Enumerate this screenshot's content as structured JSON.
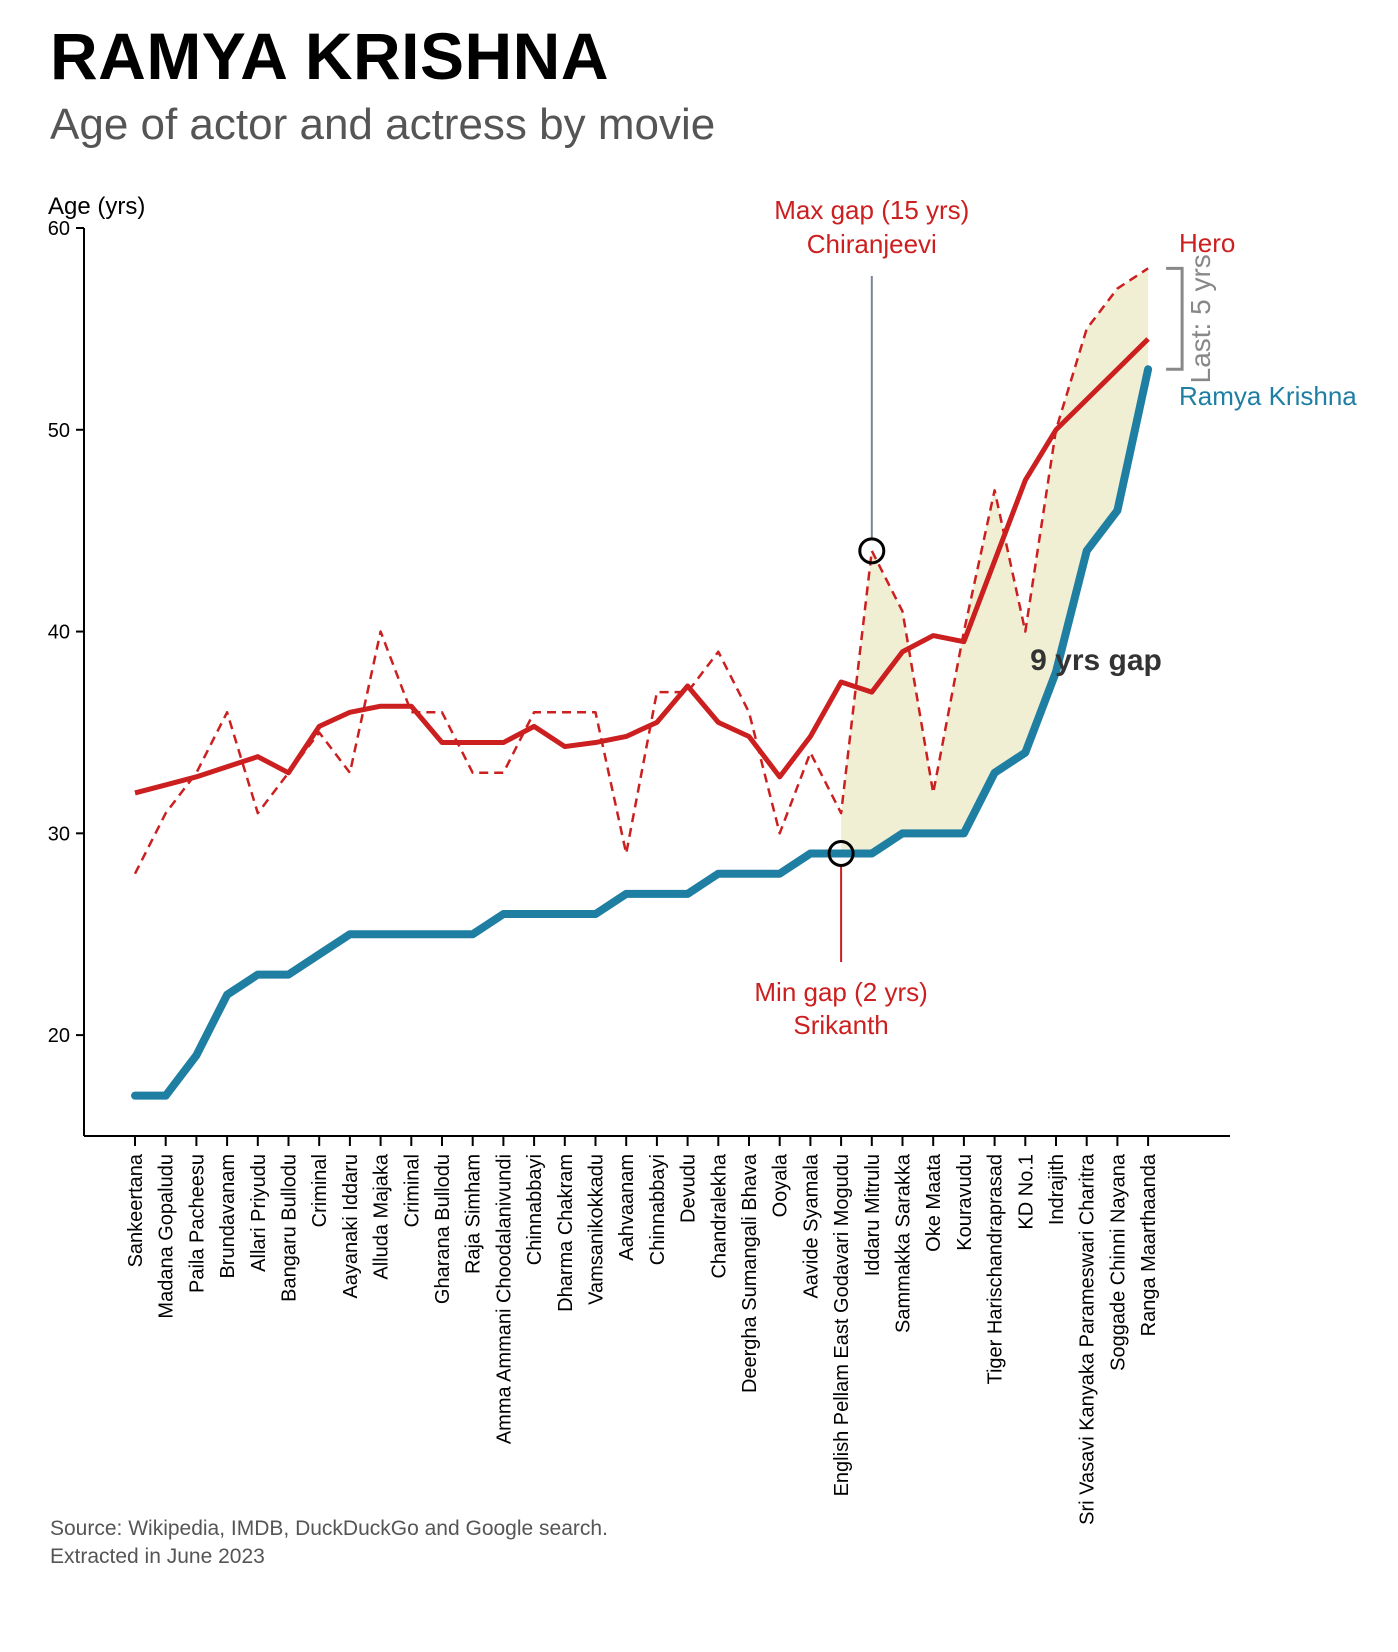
{
  "title": "RAMYA KRISHNA",
  "subtitle": "Age of actor and actress by movie",
  "source": {
    "line1": "Source: Wikipedia, IMDB, DuckDuckGo and Google search.",
    "line2": "Extracted in June 2023"
  },
  "colors": {
    "actress": "#1f7fa3",
    "hero": "#cc1f1f",
    "gap_fill": "#f0efd4",
    "pointer": "#7a8795",
    "bracket": "#888888"
  },
  "chart_data": {
    "type": "line",
    "ylabel": "Age (yrs)",
    "ylim": [
      15,
      60
    ],
    "yticks": [
      20,
      30,
      40,
      50,
      60
    ],
    "grid": false,
    "categories": [
      "Sankeertana",
      "Madana Gopaludu",
      "Paila Pacheesu",
      "Brundavanam",
      "Allari Priyudu",
      "Bangaru Bullodu",
      "Criminal",
      "Aayanaki Iddaru",
      "Alluda Majaka",
      "Criminal",
      "Gharana Bullodu",
      "Raja Simham",
      "Amma Ammani Choodalanivundi",
      "Chinnabbayi",
      "Dharma Chakram",
      "Vamsanikokkadu",
      "Aahvaanam",
      "Chinnabbayi",
      "Devudu",
      "Chandralekha",
      "Deergha Sumangali Bhava",
      "Ooyala",
      "Aavide Syamala",
      "English Pellam East Godavari Mogudu",
      "Iddaru Mitrulu",
      "Sammakka Sarakka",
      "Oke Maata",
      "Kouravudu",
      "Tiger Harischandraprasad",
      "KD No.1",
      "Indrajith",
      "Sri Vasavi Kanyaka Parameswari Charitra",
      "Soggade Chinni Nayana",
      "Ranga Maarthaanda"
    ],
    "series": [
      {
        "name": "Ramya Krishna",
        "style": "solid-thick",
        "values": [
          17,
          17,
          19,
          22,
          23,
          23,
          24,
          25,
          25,
          25,
          25,
          25,
          26,
          26,
          26,
          26,
          27,
          27,
          27,
          28,
          28,
          28,
          29,
          29,
          29,
          30,
          30,
          30,
          33,
          34,
          38,
          44,
          46,
          53
        ]
      },
      {
        "name": "Hero",
        "style": "dashed",
        "values": [
          28,
          31,
          33,
          36,
          31,
          33,
          35,
          33,
          40,
          36,
          36,
          33,
          33,
          36,
          36,
          36,
          29,
          37,
          37,
          39,
          36,
          30,
          34,
          31,
          44,
          41,
          32,
          40,
          47,
          40,
          50,
          55,
          57,
          58
        ]
      },
      {
        "name": "",
        "style": "solid-smoothed",
        "values": [
          32,
          32.4,
          32.8,
          33.3,
          33.8,
          33.0,
          35.3,
          36.0,
          36.3,
          36.3,
          34.5,
          34.5,
          34.5,
          35.3,
          34.3,
          34.5,
          34.8,
          35.5,
          37.3,
          35.5,
          34.8,
          32.8,
          34.8,
          37.5,
          37.0,
          39.0,
          39.8,
          39.5,
          43.5,
          47.5,
          50.0,
          51.5,
          53.0,
          54.5
        ]
      }
    ],
    "gap_region": {
      "from_index": 23,
      "to_index": 33
    },
    "annotations": {
      "max_gap": {
        "line1": "Max gap (15 yrs)",
        "line2": "Chiranjeevi",
        "index": 24,
        "value": 44
      },
      "min_gap": {
        "line1": "Min gap (2 yrs)",
        "line2": "Srikanth",
        "index": 23,
        "value": 29
      },
      "gap_label": "9 yrs gap",
      "last_gap": "Last: 5 yrs",
      "hero_label": "Hero",
      "actress_label": "Ramya Krishna"
    }
  }
}
